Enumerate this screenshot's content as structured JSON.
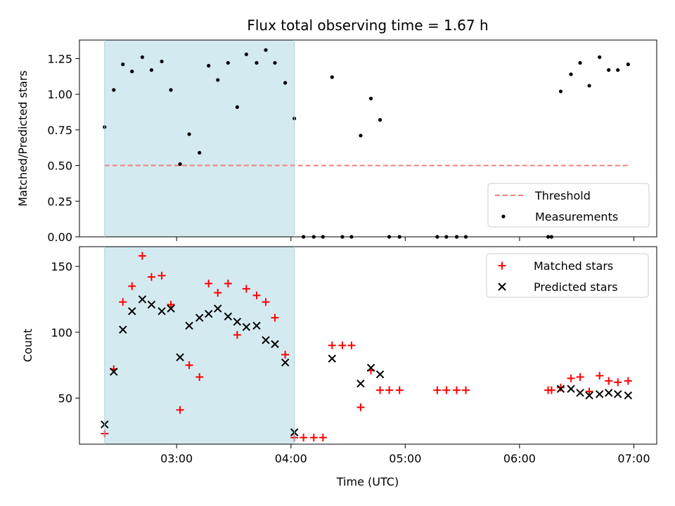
{
  "chart_data": {
    "type": "scatter",
    "title": "Flux total observing time = 1.67 h",
    "xlabel": "Time (UTC)",
    "x_ticks": [
      "03:00",
      "04:00",
      "05:00",
      "06:00",
      "07:00"
    ],
    "x_range_hours": [
      2.15,
      7.2
    ],
    "x_tick_values_hours": [
      3,
      4,
      5,
      6,
      7
    ],
    "highlight_span_hours": [
      2.37,
      4.03
    ],
    "highlight_color": "#d4eaf1",
    "panels": [
      {
        "ylabel": "Matched/Predicted stars",
        "ylim": [
          0,
          1.38
        ],
        "y_ticks": [
          0.0,
          0.25,
          0.5,
          0.75,
          1.0,
          1.25
        ],
        "y_tick_labels": [
          "0.00",
          "0.25",
          "0.50",
          "0.75",
          "1.00",
          "1.25"
        ],
        "legend_position": "lower-right",
        "series": [
          {
            "name": "Threshold",
            "type": "line",
            "style": "dashed",
            "color": "#f08080",
            "x": [
              2.37,
              6.97
            ],
            "y": [
              0.5,
              0.5
            ]
          },
          {
            "name": "Measurements",
            "type": "scatter",
            "marker": "dot",
            "color": "#000000",
            "x": [
              2.37,
              2.45,
              2.53,
              2.61,
              2.7,
              2.78,
              2.87,
              2.95,
              3.03,
              3.11,
              3.2,
              3.28,
              3.36,
              3.45,
              3.53,
              3.61,
              3.7,
              3.78,
              3.86,
              3.95,
              4.03,
              4.11,
              4.2,
              4.28,
              4.36,
              4.45,
              4.53,
              4.61,
              4.7,
              4.78,
              4.86,
              4.95,
              5.28,
              5.36,
              5.45,
              5.53,
              6.25,
              6.28,
              6.36,
              6.45,
              6.53,
              6.61,
              6.7,
              6.78,
              6.86,
              6.95
            ],
            "y": [
              0.77,
              1.03,
              1.21,
              1.16,
              1.26,
              1.17,
              1.23,
              1.03,
              0.51,
              0.72,
              0.59,
              1.2,
              1.1,
              1.22,
              0.91,
              1.28,
              1.22,
              1.31,
              1.22,
              1.08,
              0.83,
              0.0,
              0.0,
              0.0,
              1.12,
              0.0,
              0.0,
              0.71,
              0.97,
              0.82,
              0.0,
              0.0,
              0.0,
              0.0,
              0.0,
              0.0,
              0.0,
              0.0,
              1.02,
              1.14,
              1.22,
              1.06,
              1.26,
              1.17,
              1.17,
              1.21
            ]
          }
        ]
      },
      {
        "ylabel": "Count",
        "ylim": [
          15,
          165
        ],
        "y_ticks": [
          50,
          100,
          150
        ],
        "y_tick_labels": [
          "50",
          "100",
          "150"
        ],
        "legend_position": "upper-right",
        "series": [
          {
            "name": "Matched stars",
            "type": "scatter",
            "marker": "plus",
            "color": "#ff0000",
            "x": [
              2.37,
              2.45,
              2.53,
              2.61,
              2.7,
              2.78,
              2.87,
              2.95,
              3.03,
              3.11,
              3.2,
              3.28,
              3.36,
              3.45,
              3.53,
              3.61,
              3.7,
              3.78,
              3.86,
              3.95,
              4.03,
              4.11,
              4.2,
              4.28,
              4.36,
              4.45,
              4.53,
              4.61,
              4.7,
              4.78,
              4.86,
              4.95,
              5.28,
              5.36,
              5.45,
              5.53,
              6.25,
              6.28,
              6.36,
              6.45,
              6.53,
              6.61,
              6.7,
              6.78,
              6.86,
              6.95
            ],
            "y": [
              23,
              72,
              123,
              135,
              158,
              142,
              143,
              121,
              41,
              75,
              66,
              137,
              130,
              137,
              98,
              133,
              128,
              123,
              111,
              83,
              20,
              20,
              20,
              20,
              90,
              90,
              90,
              43,
              71,
              56,
              56,
              56,
              56,
              56,
              56,
              56,
              56,
              56,
              58,
              65,
              66,
              55,
              67,
              63,
              62,
              63
            ]
          },
          {
            "name": "Predicted stars",
            "type": "scatter",
            "marker": "x",
            "color": "#000000",
            "x": [
              2.37,
              2.45,
              2.53,
              2.61,
              2.7,
              2.78,
              2.87,
              2.95,
              3.03,
              3.11,
              3.2,
              3.28,
              3.36,
              3.45,
              3.53,
              3.61,
              3.7,
              3.78,
              3.86,
              3.95,
              4.03,
              4.36,
              4.61,
              4.7,
              4.78,
              6.36,
              6.45,
              6.53,
              6.61,
              6.7,
              6.78,
              6.86,
              6.95
            ],
            "y": [
              30,
              70,
              102,
              116,
              125,
              121,
              116,
              118,
              81,
              105,
              111,
              114,
              118,
              112,
              108,
              104,
              105,
              94,
              91,
              77,
              24,
              80,
              61,
              73,
              68,
              57,
              57,
              54,
              52,
              53,
              54,
              53,
              52
            ]
          }
        ]
      }
    ]
  }
}
